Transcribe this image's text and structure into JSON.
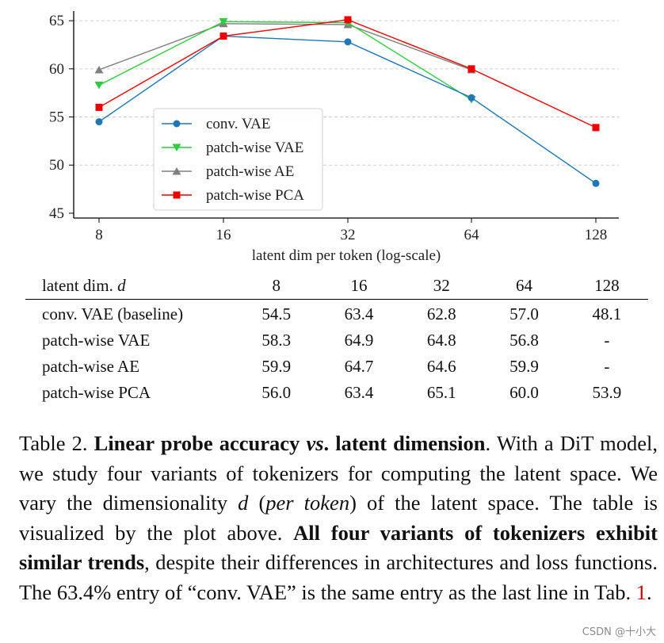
{
  "chart_data": {
    "type": "line",
    "x": [
      "8",
      "16",
      "32",
      "64",
      "128"
    ],
    "xlabel": "latent dim per token (log-scale)",
    "ylabel": "",
    "ylim": [
      45,
      66
    ],
    "yticks": [
      45,
      50,
      55,
      60,
      65
    ],
    "grid": "horizontal dashed",
    "legend_position": "center-left",
    "series": [
      {
        "name": "conv. VAE",
        "color": "#1f77b4",
        "marker": "circle",
        "values": [
          54.5,
          63.4,
          62.8,
          57.0,
          48.1
        ]
      },
      {
        "name": "patch-wise VAE",
        "color": "#2ecc40",
        "marker": "triangle-down",
        "values": [
          58.3,
          64.9,
          64.8,
          56.8,
          null
        ]
      },
      {
        "name": "patch-wise AE",
        "color": "#808080",
        "marker": "triangle-up",
        "values": [
          59.9,
          64.7,
          64.6,
          59.9,
          null
        ]
      },
      {
        "name": "patch-wise PCA",
        "color": "#ee0000",
        "marker": "square",
        "values": [
          56.0,
          63.4,
          65.1,
          60.0,
          53.9
        ]
      }
    ]
  },
  "table": {
    "header_label": "latent dim.",
    "header_var": "d",
    "columns": [
      "8",
      "16",
      "32",
      "64",
      "128"
    ],
    "rows": [
      {
        "name": "conv. VAE (baseline)",
        "cells": [
          "54.5",
          "63.4",
          "62.8",
          "57.0",
          "48.1"
        ],
        "bold_index": 1
      },
      {
        "name": "patch-wise VAE",
        "cells": [
          "58.3",
          "64.9",
          "64.8",
          "56.8",
          "-"
        ],
        "bold_index": 1
      },
      {
        "name": "patch-wise AE",
        "cells": [
          "59.9",
          "64.7",
          "64.6",
          "59.9",
          "-"
        ],
        "bold_index": 1
      },
      {
        "name": "patch-wise PCA",
        "cells": [
          "56.0",
          "63.4",
          "65.1",
          "60.0",
          "53.9"
        ],
        "bold_index": 2
      }
    ]
  },
  "caption": {
    "label": "Table 2.",
    "title": [
      "Linear probe accuracy ",
      "vs",
      ". latent dimension"
    ],
    "s1": ". With a DiT model, we study four variants of tokenizers for computing the latent space. We vary the dimensionality ",
    "d": "d",
    "s2": " (",
    "per_token": "per token",
    "s3": ") of the latent space. The table is visualized by the plot above. ",
    "bold2": "All four variants of tokenizers exhibit similar trends",
    "s4": ", despite their differences in architectures and loss functions. The 63.4% entry of “conv. VAE” is the same entry as the last line in Tab. ",
    "ref": "1",
    "s5": "."
  },
  "watermark": "CSDN @十小大"
}
